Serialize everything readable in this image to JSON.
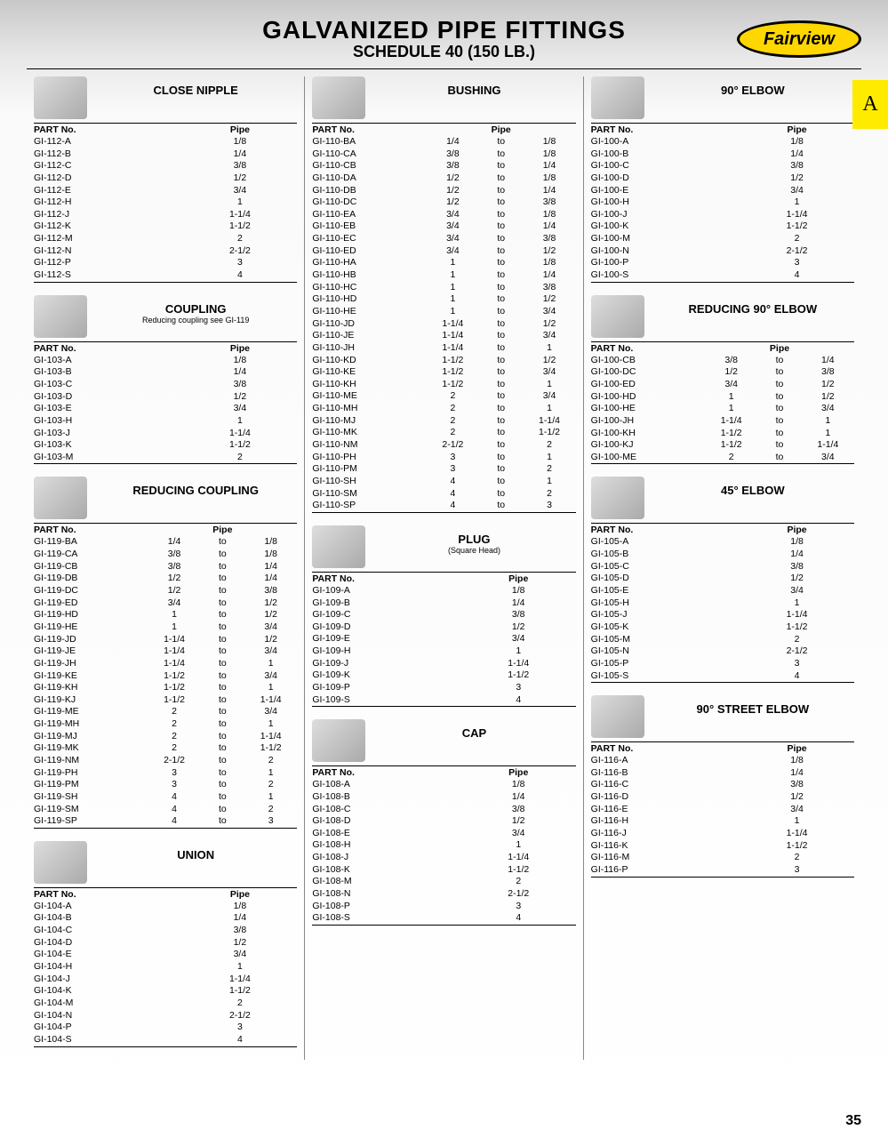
{
  "page": {
    "title": "GALVANIZED PIPE FITTINGS",
    "subtitle": "SCHEDULE 40 (150 LB.)",
    "logo_text": "Fairview",
    "tab_letter": "A",
    "page_number": "35",
    "part_no_label": "PART No.",
    "pipe_label": "Pipe",
    "to_label": "to"
  },
  "colors": {
    "tab_bg": "#ffeb00",
    "logo_bg": "#ffd700"
  },
  "sections": [
    {
      "col": 0,
      "title": "CLOSE NIPPLE",
      "type": "simple",
      "rows": [
        [
          "GI-112-A",
          "1/8"
        ],
        [
          "GI-112-B",
          "1/4"
        ],
        [
          "GI-112-C",
          "3/8"
        ],
        [
          "GI-112-D",
          "1/2"
        ],
        [
          "GI-112-E",
          "3/4"
        ],
        [
          "GI-112-H",
          "1"
        ],
        [
          "GI-112-J",
          "1-1/4"
        ],
        [
          "GI-112-K",
          "1-1/2"
        ],
        [
          "GI-112-M",
          "2"
        ],
        [
          "GI-112-N",
          "2-1/2"
        ],
        [
          "GI-112-P",
          "3"
        ],
        [
          "GI-112-S",
          "4"
        ]
      ]
    },
    {
      "col": 0,
      "title": "COUPLING",
      "subtitle": "Reducing coupling see GI-119",
      "type": "simple",
      "rows": [
        [
          "GI-103-A",
          "1/8"
        ],
        [
          "GI-103-B",
          "1/4"
        ],
        [
          "GI-103-C",
          "3/8"
        ],
        [
          "GI-103-D",
          "1/2"
        ],
        [
          "GI-103-E",
          "3/4"
        ],
        [
          "GI-103-H",
          "1"
        ],
        [
          "GI-103-J",
          "1-1/4"
        ],
        [
          "GI-103-K",
          "1-1/2"
        ],
        [
          "GI-103-M",
          "2"
        ]
      ]
    },
    {
      "col": 0,
      "title": "REDUCING COUPLING",
      "type": "reducing",
      "rows": [
        [
          "GI-119-BA",
          "1/4",
          "1/8"
        ],
        [
          "GI-119-CA",
          "3/8",
          "1/8"
        ],
        [
          "GI-119-CB",
          "3/8",
          "1/4"
        ],
        [
          "GI-119-DB",
          "1/2",
          "1/4"
        ],
        [
          "GI-119-DC",
          "1/2",
          "3/8"
        ],
        [
          "GI-119-ED",
          "3/4",
          "1/2"
        ],
        [
          "GI-119-HD",
          "1",
          "1/2"
        ],
        [
          "GI-119-HE",
          "1",
          "3/4"
        ],
        [
          "GI-119-JD",
          "1-1/4",
          "1/2"
        ],
        [
          "GI-119-JE",
          "1-1/4",
          "3/4"
        ],
        [
          "GI-119-JH",
          "1-1/4",
          "1"
        ],
        [
          "GI-119-KE",
          "1-1/2",
          "3/4"
        ],
        [
          "GI-119-KH",
          "1-1/2",
          "1"
        ],
        [
          "GI-119-KJ",
          "1-1/2",
          "1-1/4"
        ],
        [
          "GI-119-ME",
          "2",
          "3/4"
        ],
        [
          "GI-119-MH",
          "2",
          "1"
        ],
        [
          "GI-119-MJ",
          "2",
          "1-1/4"
        ],
        [
          "GI-119-MK",
          "2",
          "1-1/2"
        ],
        [
          "GI-119-NM",
          "2-1/2",
          "2"
        ],
        [
          "GI-119-PH",
          "3",
          "1"
        ],
        [
          "GI-119-PM",
          "3",
          "2"
        ],
        [
          "GI-119-SH",
          "4",
          "1"
        ],
        [
          "GI-119-SM",
          "4",
          "2"
        ],
        [
          "GI-119-SP",
          "4",
          "3"
        ]
      ]
    },
    {
      "col": 0,
      "title": "UNION",
      "type": "simple",
      "rows": [
        [
          "GI-104-A",
          "1/8"
        ],
        [
          "GI-104-B",
          "1/4"
        ],
        [
          "GI-104-C",
          "3/8"
        ],
        [
          "GI-104-D",
          "1/2"
        ],
        [
          "GI-104-E",
          "3/4"
        ],
        [
          "GI-104-H",
          "1"
        ],
        [
          "GI-104-J",
          "1-1/4"
        ],
        [
          "GI-104-K",
          "1-1/2"
        ],
        [
          "GI-104-M",
          "2"
        ],
        [
          "GI-104-N",
          "2-1/2"
        ],
        [
          "GI-104-P",
          "3"
        ],
        [
          "GI-104-S",
          "4"
        ]
      ]
    },
    {
      "col": 1,
      "title": "BUSHING",
      "type": "reducing",
      "rows": [
        [
          "GI-110-BA",
          "1/4",
          "1/8"
        ],
        [
          "GI-110-CA",
          "3/8",
          "1/8"
        ],
        [
          "GI-110-CB",
          "3/8",
          "1/4"
        ],
        [
          "GI-110-DA",
          "1/2",
          "1/8"
        ],
        [
          "GI-110-DB",
          "1/2",
          "1/4"
        ],
        [
          "GI-110-DC",
          "1/2",
          "3/8"
        ],
        [
          "GI-110-EA",
          "3/4",
          "1/8"
        ],
        [
          "GI-110-EB",
          "3/4",
          "1/4"
        ],
        [
          "GI-110-EC",
          "3/4",
          "3/8"
        ],
        [
          "GI-110-ED",
          "3/4",
          "1/2"
        ],
        [
          "GI-110-HA",
          "1",
          "1/8"
        ],
        [
          "GI-110-HB",
          "1",
          "1/4"
        ],
        [
          "GI-110-HC",
          "1",
          "3/8"
        ],
        [
          "GI-110-HD",
          "1",
          "1/2"
        ],
        [
          "GI-110-HE",
          "1",
          "3/4"
        ],
        [
          "GI-110-JD",
          "1-1/4",
          "1/2"
        ],
        [
          "GI-110-JE",
          "1-1/4",
          "3/4"
        ],
        [
          "GI-110-JH",
          "1-1/4",
          "1"
        ],
        [
          "GI-110-KD",
          "1-1/2",
          "1/2"
        ],
        [
          "GI-110-KE",
          "1-1/2",
          "3/4"
        ],
        [
          "GI-110-KH",
          "1-1/2",
          "1"
        ],
        [
          "GI-110-ME",
          "2",
          "3/4"
        ],
        [
          "GI-110-MH",
          "2",
          "1"
        ],
        [
          "GI-110-MJ",
          "2",
          "1-1/4"
        ],
        [
          "GI-110-MK",
          "2",
          "1-1/2"
        ],
        [
          "GI-110-NM",
          "2-1/2",
          "2"
        ],
        [
          "GI-110-PH",
          "3",
          "1"
        ],
        [
          "GI-110-PM",
          "3",
          "2"
        ],
        [
          "GI-110-SH",
          "4",
          "1"
        ],
        [
          "GI-110-SM",
          "4",
          "2"
        ],
        [
          "GI-110-SP",
          "4",
          "3"
        ]
      ]
    },
    {
      "col": 1,
      "title": "PLUG",
      "subtitle": "(Square Head)",
      "type": "simple",
      "rows": [
        [
          "GI-109-A",
          "1/8"
        ],
        [
          "GI-109-B",
          "1/4"
        ],
        [
          "GI-109-C",
          "3/8"
        ],
        [
          "GI-109-D",
          "1/2"
        ],
        [
          "GI-109-E",
          "3/4"
        ],
        [
          "GI-109-H",
          "1"
        ],
        [
          "GI-109-J",
          "1-1/4"
        ],
        [
          "GI-109-K",
          "1-1/2"
        ],
        [
          "GI-109-P",
          "3"
        ],
        [
          "GI-109-S",
          "4"
        ]
      ]
    },
    {
      "col": 1,
      "title": "CAP",
      "type": "simple",
      "rows": [
        [
          "GI-108-A",
          "1/8"
        ],
        [
          "GI-108-B",
          "1/4"
        ],
        [
          "GI-108-C",
          "3/8"
        ],
        [
          "GI-108-D",
          "1/2"
        ],
        [
          "GI-108-E",
          "3/4"
        ],
        [
          "GI-108-H",
          "1"
        ],
        [
          "GI-108-J",
          "1-1/4"
        ],
        [
          "GI-108-K",
          "1-1/2"
        ],
        [
          "GI-108-M",
          "2"
        ],
        [
          "GI-108-N",
          "2-1/2"
        ],
        [
          "GI-108-P",
          "3"
        ],
        [
          "GI-108-S",
          "4"
        ]
      ]
    },
    {
      "col": 2,
      "title": "90° ELBOW",
      "type": "simple",
      "rows": [
        [
          "GI-100-A",
          "1/8"
        ],
        [
          "GI-100-B",
          "1/4"
        ],
        [
          "GI-100-C",
          "3/8"
        ],
        [
          "GI-100-D",
          "1/2"
        ],
        [
          "GI-100-E",
          "3/4"
        ],
        [
          "GI-100-H",
          "1"
        ],
        [
          "GI-100-J",
          "1-1/4"
        ],
        [
          "GI-100-K",
          "1-1/2"
        ],
        [
          "GI-100-M",
          "2"
        ],
        [
          "GI-100-N",
          "2-1/2"
        ],
        [
          "GI-100-P",
          "3"
        ],
        [
          "GI-100-S",
          "4"
        ]
      ]
    },
    {
      "col": 2,
      "title": "REDUCING 90° ELBOW",
      "type": "reducing",
      "rows": [
        [
          "GI-100-CB",
          "3/8",
          "1/4"
        ],
        [
          "GI-100-DC",
          "1/2",
          "3/8"
        ],
        [
          "GI-100-ED",
          "3/4",
          "1/2"
        ],
        [
          "GI-100-HD",
          "1",
          "1/2"
        ],
        [
          "GI-100-HE",
          "1",
          "3/4"
        ],
        [
          "GI-100-JH",
          "1-1/4",
          "1"
        ],
        [
          "GI-100-KH",
          "1-1/2",
          "1"
        ],
        [
          "GI-100-KJ",
          "1-1/2",
          "1-1/4"
        ],
        [
          "GI-100-ME",
          "2",
          "3/4"
        ]
      ]
    },
    {
      "col": 2,
      "title": "45° ELBOW",
      "type": "simple",
      "rows": [
        [
          "GI-105-A",
          "1/8"
        ],
        [
          "GI-105-B",
          "1/4"
        ],
        [
          "GI-105-C",
          "3/8"
        ],
        [
          "GI-105-D",
          "1/2"
        ],
        [
          "GI-105-E",
          "3/4"
        ],
        [
          "GI-105-H",
          "1"
        ],
        [
          "GI-105-J",
          "1-1/4"
        ],
        [
          "GI-105-K",
          "1-1/2"
        ],
        [
          "GI-105-M",
          "2"
        ],
        [
          "GI-105-N",
          "2-1/2"
        ],
        [
          "GI-105-P",
          "3"
        ],
        [
          "GI-105-S",
          "4"
        ]
      ]
    },
    {
      "col": 2,
      "title": "90° STREET ELBOW",
      "type": "simple",
      "rows": [
        [
          "GI-116-A",
          "1/8"
        ],
        [
          "GI-116-B",
          "1/4"
        ],
        [
          "GI-116-C",
          "3/8"
        ],
        [
          "GI-116-D",
          "1/2"
        ],
        [
          "GI-116-E",
          "3/4"
        ],
        [
          "GI-116-H",
          "1"
        ],
        [
          "GI-116-J",
          "1-1/4"
        ],
        [
          "GI-116-K",
          "1-1/2"
        ],
        [
          "GI-116-M",
          "2"
        ],
        [
          "GI-116-P",
          "3"
        ]
      ]
    }
  ]
}
